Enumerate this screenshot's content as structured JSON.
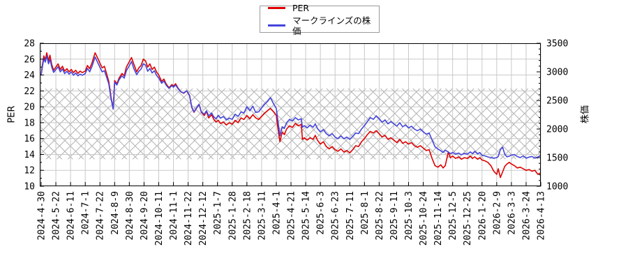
{
  "chart_data": {
    "type": "line",
    "title": "",
    "grid": true,
    "legend_position": "top-center",
    "legend": [
      {
        "name": "PER",
        "color": "#dd0000"
      },
      {
        "name": "マークラインズの株価",
        "color": "#4444dd"
      }
    ],
    "y_left": {
      "label": "PER",
      "min": 10,
      "max": 28,
      "major_step": 2,
      "minor_step": 1
    },
    "y_right": {
      "label": "株価",
      "min": 1000,
      "max": 3500,
      "major_step": 500,
      "minor_step": 100
    },
    "hatched_band_per": [
      13.4,
      22.3
    ],
    "x_tick_labels": [
      "2024-4-30",
      "2024-5-22",
      "2024-6-11",
      "2024-7-1",
      "2024-7-22",
      "2024-8-9",
      "2024-8-30",
      "2024-9-20",
      "2024-10-11",
      "2024-11-1",
      "2024-11-22",
      "2024-12-12",
      "2025-1-7",
      "2025-1-28",
      "2025-2-18",
      "2025-3-11",
      "2025-4-1",
      "2025-4-21",
      "2025-5-14",
      "2025-6-3",
      "2025-6-23",
      "2025-7-11",
      "2025-8-1",
      "2025-8-22",
      "2025-9-11",
      "2025-10-3",
      "2025-10-24",
      "2025-11-14",
      "2025-12-5",
      "2025-12-25",
      "2026-1-20",
      "2026-2-9",
      "2026-3-3",
      "2026-3-24",
      "2026-4-13"
    ],
    "t": [
      0,
      0.08,
      0.18,
      0.28,
      0.38,
      0.5,
      0.6,
      0.72,
      0.85,
      1,
      1.15,
      1.3,
      1.45,
      1.6,
      1.75,
      1.9,
      2.05,
      2.2,
      2.35,
      2.5,
      2.65,
      2.8,
      3,
      3.15,
      3.3,
      3.45,
      3.67,
      3.85,
      4,
      4.15,
      4.3,
      4.45,
      4.6,
      4.75,
      4.9,
      5,
      5.15,
      5.3,
      5.5,
      5.65,
      5.8,
      6,
      6.15,
      6.3,
      6.5,
      6.65,
      6.8,
      6.95,
      7.1,
      7.25,
      7.4,
      7.55,
      7.7,
      7.85,
      8,
      8.2,
      8.35,
      8.5,
      8.7,
      8.9,
      9,
      9.15,
      9.3,
      9.5,
      9.7,
      9.9,
      10.1,
      10.25,
      10.4,
      10.6,
      10.75,
      10.9,
      11.1,
      11.25,
      11.4,
      11.6,
      11.75,
      11.9,
      12.05,
      12.2,
      12.4,
      12.6,
      12.8,
      13,
      13.2,
      13.4,
      13.6,
      13.8,
      14,
      14.2,
      14.4,
      14.6,
      14.8,
      15,
      15.2,
      15.4,
      15.6,
      15.8,
      16,
      16.1,
      16.25,
      16.4,
      16.55,
      16.7,
      16.9,
      17.1,
      17.3,
      17.5,
      17.7,
      17.78,
      17.9,
      18.1,
      18.3,
      18.5,
      18.65,
      18.8,
      19,
      19.2,
      19.4,
      19.6,
      19.8,
      20,
      20.2,
      20.4,
      20.6,
      20.8,
      21,
      21.2,
      21.4,
      21.6,
      21.8,
      22,
      22.2,
      22.4,
      22.6,
      22.8,
      23,
      23.2,
      23.4,
      23.6,
      23.8,
      24,
      24.2,
      24.4,
      24.6,
      24.8,
      25,
      25.2,
      25.4,
      25.6,
      25.8,
      26,
      26.2,
      26.4,
      26.6,
      26.8,
      27,
      27.2,
      27.35,
      27.5,
      27.7,
      27.85,
      28,
      28.2,
      28.4,
      28.6,
      28.8,
      29,
      29.2,
      29.35,
      29.5,
      29.7,
      29.85,
      30,
      30.2,
      30.4,
      30.6,
      30.8,
      31,
      31.1,
      31.25,
      31.4,
      31.55,
      31.7,
      31.85,
      32,
      32.2,
      32.4,
      32.6,
      32.8,
      33,
      33.2,
      33.4,
      33.6,
      33.8,
      34
    ],
    "series": [
      {
        "name": "PER",
        "axis": "left",
        "color": "#dd0000",
        "values": [
          24.1,
          25.2,
          26.4,
          25.9,
          26.8,
          25.8,
          26.5,
          25.3,
          24.6,
          25,
          25.4,
          24.7,
          25.1,
          24.5,
          24.8,
          24.4,
          24.7,
          24.3,
          24.6,
          24.2,
          24.5,
          24.3,
          24.5,
          25.2,
          24.8,
          25.5,
          26.8,
          26.1,
          25.5,
          24.9,
          25.1,
          24.2,
          23.2,
          21.3,
          19.7,
          23.3,
          22.9,
          23.6,
          24.2,
          23.9,
          25,
          25.7,
          26.2,
          25.4,
          24.4,
          24.9,
          25.2,
          26,
          25.8,
          25,
          25.4,
          24.7,
          25,
          24.4,
          24,
          23.2,
          23.5,
          22.9,
          22.4,
          22.8,
          22.6,
          22.9,
          22.4,
          21.9,
          21.7,
          22,
          21.4,
          19.9,
          19.3,
          19.9,
          20.3,
          19.3,
          18.9,
          19.4,
          18.6,
          19,
          18.4,
          18.1,
          18.3,
          17.9,
          18.1,
          17.7,
          18,
          17.8,
          18.3,
          18,
          18.6,
          18.4,
          18.9,
          18.5,
          19,
          18.6,
          18.4,
          18.8,
          19.2,
          19.5,
          19.8,
          19.4,
          18.9,
          17.4,
          15.6,
          16.8,
          16.5,
          17.2,
          17.6,
          17.4,
          17.9,
          17.6,
          17.8,
          15.9,
          16.1,
          15.8,
          16.1,
          15.9,
          16.4,
          15.8,
          15.3,
          15.6,
          15,
          14.7,
          15,
          14.6,
          14.4,
          14.7,
          14.3,
          14.5,
          14.2,
          14.6,
          15.1,
          15,
          15.6,
          16,
          16.5,
          16.9,
          16.7,
          17,
          16.6,
          16.2,
          16.4,
          15.9,
          16.1,
          15.8,
          15.5,
          15.9,
          15.4,
          15.6,
          15.3,
          15.5,
          15.1,
          14.9,
          15.1,
          14.8,
          14.5,
          14.6,
          13.5,
          12.6,
          12.4,
          12.7,
          12.3,
          12.6,
          14.3,
          13.6,
          13.8,
          13.5,
          13.7,
          13.4,
          13.6,
          13.5,
          13.8,
          13.5,
          13.7,
          13.4,
          13.6,
          13.3,
          13.2,
          13,
          12.6,
          11.9,
          11.5,
          12.2,
          11.1,
          11.8,
          12.5,
          12.8,
          13,
          12.8,
          12.6,
          12.3,
          12.4,
          12.2,
          12,
          12.1,
          11.9,
          12,
          11.5,
          11.7
        ]
      },
      {
        "name": "マークラインズの株価",
        "axis": "right",
        "color": "#4444dd",
        "values": [
          2940,
          3080,
          3230,
          3170,
          3280,
          3140,
          3220,
          3080,
          2990,
          3040,
          3090,
          3000,
          3050,
          2970,
          3010,
          2960,
          3000,
          2940,
          2980,
          2930,
          2960,
          2940,
          2970,
          3060,
          3000,
          3090,
          3260,
          3160,
          3080,
          3000,
          3020,
          2910,
          2790,
          2540,
          2350,
          2820,
          2770,
          2860,
          2930,
          2890,
          3020,
          3110,
          3180,
          3060,
          2950,
          3010,
          3050,
          3140,
          3120,
          3010,
          3060,
          2980,
          3020,
          2940,
          2890,
          2800,
          2840,
          2770,
          2710,
          2760,
          2730,
          2770,
          2710,
          2650,
          2630,
          2670,
          2590,
          2380,
          2300,
          2380,
          2430,
          2300,
          2260,
          2320,
          2230,
          2280,
          2210,
          2180,
          2240,
          2190,
          2220,
          2160,
          2190,
          2170,
          2260,
          2220,
          2300,
          2280,
          2390,
          2320,
          2400,
          2290,
          2300,
          2370,
          2430,
          2480,
          2550,
          2450,
          2360,
          2160,
          1880,
          2040,
          2010,
          2110,
          2170,
          2140,
          2200,
          2160,
          2180,
          2030,
          2060,
          2020,
          2070,
          2030,
          2090,
          2010,
          1950,
          1990,
          1920,
          1880,
          1920,
          1860,
          1830,
          1880,
          1830,
          1860,
          1820,
          1870,
          1930,
          1920,
          2000,
          2060,
          2130,
          2200,
          2170,
          2230,
          2180,
          2120,
          2160,
          2090,
          2130,
          2090,
          2050,
          2110,
          2040,
          2070,
          2020,
          2050,
          2000,
          1970,
          2000,
          1950,
          1910,
          1930,
          1810,
          1690,
          1650,
          1620,
          1590,
          1630,
          1600,
          1570,
          1590,
          1560,
          1580,
          1550,
          1575,
          1560,
          1600,
          1570,
          1610,
          1565,
          1590,
          1540,
          1530,
          1512,
          1500,
          1490,
          1500,
          1520,
          1640,
          1683,
          1560,
          1515,
          1525,
          1545,
          1555,
          1520,
          1500,
          1530,
          1490,
          1510,
          1520,
          1490,
          1510,
          1540
        ]
      }
    ]
  },
  "layout_colors": {
    "background": "#ffffff",
    "grid": "#c9c9c9",
    "hatch": "#b3b3b3",
    "axis": "#000000",
    "legend_border": "#9a9a9a"
  }
}
